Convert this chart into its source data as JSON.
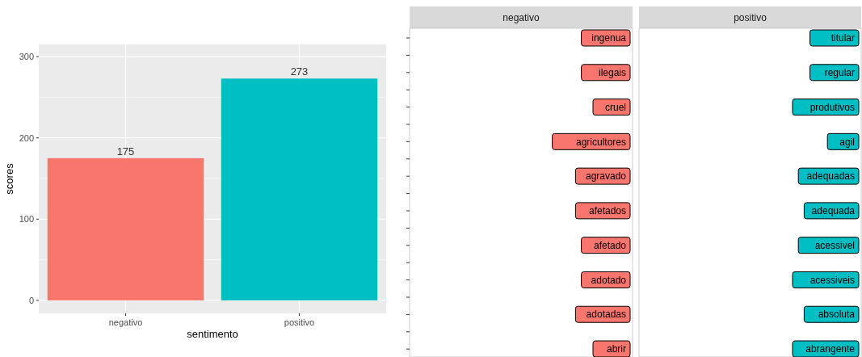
{
  "chart_data": [
    {
      "type": "bar",
      "categories": [
        "negativo",
        "positivo"
      ],
      "values": [
        175,
        273
      ],
      "colors": [
        "#f8766d",
        "#00bfc4"
      ],
      "ylim": [
        -16,
        315
      ],
      "yticks": [
        0,
        100,
        200,
        300
      ],
      "grid": true,
      "xlabel": "sentimento",
      "ylabel": "scores",
      "data_labels": true
    },
    {
      "type": "other",
      "title": "negativo",
      "color": "#f8766d",
      "annotations": [
        "ingenua",
        "ilegais",
        "cruel",
        "agricultores",
        "agravado",
        "afetados",
        "afetado",
        "adotado",
        "adotadas",
        "abrir"
      ]
    },
    {
      "type": "other",
      "title": "positivo",
      "color": "#00bfc4",
      "annotations": [
        "titular",
        "regular",
        "produtivos",
        "agil",
        "adequadas",
        "adequada",
        "acessivel",
        "acessiveis",
        "absoluta",
        "abrangente"
      ]
    }
  ]
}
